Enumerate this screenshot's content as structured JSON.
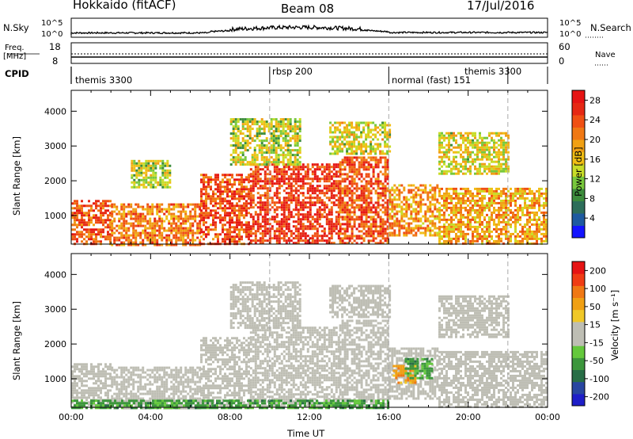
{
  "header": {
    "station": "Hokkaido (fitACF)",
    "beam": "Beam 08",
    "date": "17/Jul/2016"
  },
  "top_panels": {
    "nsky_label": "N.Sky",
    "nsearch_label": "N.Search",
    "nsky_ticks": [
      "10^5",
      "10^0"
    ],
    "nsearch_ticks": [
      "10^5",
      "10^0"
    ],
    "freq_label": "Freq.",
    "freq_unit": "[MHz]",
    "freq_ticks": [
      "18",
      "8"
    ],
    "nave_label": "Nave",
    "nave_ticks": [
      "60",
      "0"
    ],
    "cpid_label": "CPID",
    "cpid_segments": [
      {
        "name": "themis 3300",
        "start_h": 0
      },
      {
        "name": "rbsp 200",
        "start_h": 10
      },
      {
        "name": "normal (fast) 151",
        "start_h": 16
      },
      {
        "name": "themis 3300",
        "start_h": 22
      }
    ]
  },
  "chart_data": [
    {
      "type": "heatmap",
      "title": "",
      "xlabel": "Time UT",
      "ylabel": "Slant Range [km]",
      "xlim": [
        0,
        24
      ],
      "ylim": [
        180,
        4600
      ],
      "x_ticks": [
        "00:00",
        "04:00",
        "08:00",
        "12:00",
        "16:00",
        "20:00",
        "00:00"
      ],
      "y_ticks": [
        1000,
        2000,
        3000,
        4000
      ],
      "colorbar": {
        "label": "Power [dB]",
        "range": [
          0,
          30
        ],
        "ticks": [
          4,
          8,
          12,
          16,
          20,
          24,
          28
        ],
        "colors": [
          "#1414ff",
          "#1e5aa0",
          "#2d6e5a",
          "#3c8c3c",
          "#78c83c",
          "#c8dc28",
          "#f0be14",
          "#f0a014",
          "#f07814",
          "#f05014",
          "#e62814",
          "#e61414"
        ]
      },
      "regions": [
        {
          "t0": 0.0,
          "t1": 2.0,
          "r0": 180,
          "r1": 1450,
          "level": 0.78
        },
        {
          "t0": 2.0,
          "t1": 6.5,
          "r0": 180,
          "r1": 1350,
          "level": 0.7
        },
        {
          "t0": 6.5,
          "t1": 9.0,
          "r0": 180,
          "r1": 2200,
          "level": 0.8
        },
        {
          "t0": 9.0,
          "t1": 13.5,
          "r0": 180,
          "r1": 2500,
          "level": 0.85
        },
        {
          "t0": 13.5,
          "t1": 16.0,
          "r0": 180,
          "r1": 2700,
          "level": 0.8
        },
        {
          "t0": 16.0,
          "t1": 18.5,
          "r0": 400,
          "r1": 1900,
          "level": 0.65
        },
        {
          "t0": 18.5,
          "t1": 24.0,
          "r0": 180,
          "r1": 1800,
          "level": 0.62
        },
        {
          "t0": 8.0,
          "t1": 11.5,
          "r0": 2500,
          "r1": 3800,
          "level": 0.45
        },
        {
          "t0": 13.0,
          "t1": 16.0,
          "r0": 2800,
          "r1": 3700,
          "level": 0.5
        },
        {
          "t0": 18.5,
          "t1": 22.0,
          "r0": 2200,
          "r1": 3400,
          "level": 0.5
        },
        {
          "t0": 3.0,
          "t1": 5.0,
          "r0": 1800,
          "r1": 2600,
          "level": 0.45
        }
      ]
    },
    {
      "type": "heatmap",
      "title": "",
      "xlabel": "Time UT",
      "ylabel": "Slant Range [km]",
      "xlim": [
        0,
        24
      ],
      "ylim": [
        180,
        4600
      ],
      "x_ticks": [
        "00:00",
        "04:00",
        "08:00",
        "12:00",
        "16:00",
        "20:00",
        "00:00"
      ],
      "y_ticks": [
        1000,
        2000,
        3000,
        4000
      ],
      "colorbar": {
        "label": "Velocity [m s⁻¹]",
        "range": [
          -250,
          250
        ],
        "ticks": [
          200,
          100,
          50,
          15,
          -15,
          -50,
          -100,
          -200
        ],
        "colors": [
          "#1e1ec8",
          "#2846a0",
          "#286e46",
          "#3c963c",
          "#64c83c",
          "#bebeb4",
          "#bebeb4",
          "#f0c828",
          "#f0a014",
          "#f07814",
          "#f03c14",
          "#e61414"
        ]
      },
      "regions": [
        {
          "t0": 0.0,
          "t1": 2.0,
          "r0": 180,
          "r1": 1450,
          "level": 0.5
        },
        {
          "t0": 2.0,
          "t1": 6.5,
          "r0": 180,
          "r1": 1350,
          "level": 0.5
        },
        {
          "t0": 6.5,
          "t1": 9.0,
          "r0": 180,
          "r1": 2200,
          "level": 0.5
        },
        {
          "t0": 9.0,
          "t1": 13.5,
          "r0": 180,
          "r1": 2500,
          "level": 0.5
        },
        {
          "t0": 13.5,
          "t1": 16.0,
          "r0": 180,
          "r1": 2700,
          "level": 0.5
        },
        {
          "t0": 16.0,
          "t1": 18.5,
          "r0": 400,
          "r1": 1900,
          "level": 0.5
        },
        {
          "t0": 18.5,
          "t1": 24.0,
          "r0": 180,
          "r1": 1800,
          "level": 0.5
        },
        {
          "t0": 8.0,
          "t1": 11.5,
          "r0": 2500,
          "r1": 3800,
          "level": 0.5
        },
        {
          "t0": 13.0,
          "t1": 16.0,
          "r0": 2800,
          "r1": 3700,
          "level": 0.5
        },
        {
          "t0": 18.5,
          "t1": 22.0,
          "r0": 2200,
          "r1": 3400,
          "level": 0.5
        },
        {
          "t0": 16.2,
          "t1": 17.3,
          "r0": 900,
          "r1": 1400,
          "level": 0.72
        },
        {
          "t0": 16.8,
          "t1": 18.2,
          "r0": 1000,
          "r1": 1600,
          "level": 0.3
        },
        {
          "t0": 0.0,
          "t1": 16.0,
          "r0": 180,
          "r1": 400,
          "level": 0.3
        }
      ]
    }
  ]
}
